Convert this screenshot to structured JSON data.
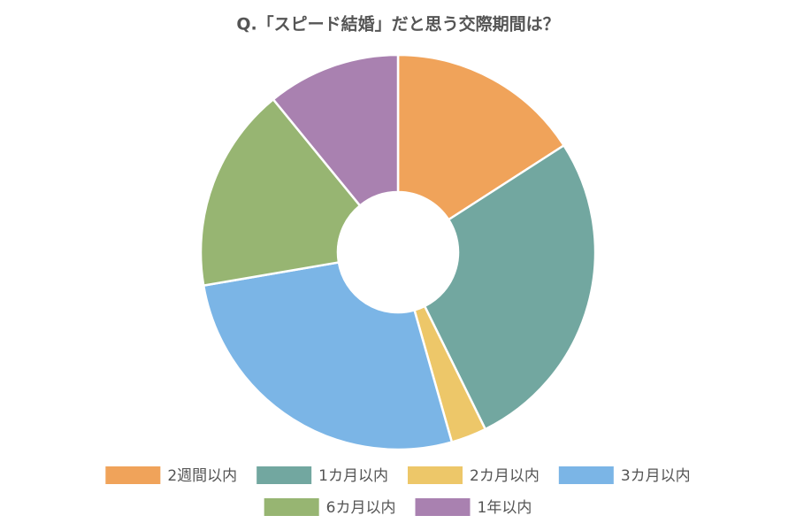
{
  "chart_data": {
    "type": "donut",
    "title": "Q.「スピード結婚」だと思う交際期間は？",
    "categories": [
      "2週間以内",
      "1カ月以内",
      "2カ月以内",
      "3カ月以内",
      "6カ月以内",
      "1年以内"
    ],
    "values": [
      15.9,
      26.8,
      2.9,
      26.7,
      16.8,
      10.9
    ],
    "colors": [
      "#f0a35a",
      "#72a7a0",
      "#edc769",
      "#7bb5e6",
      "#97b572",
      "#a981b0"
    ],
    "legend": "bottom"
  }
}
